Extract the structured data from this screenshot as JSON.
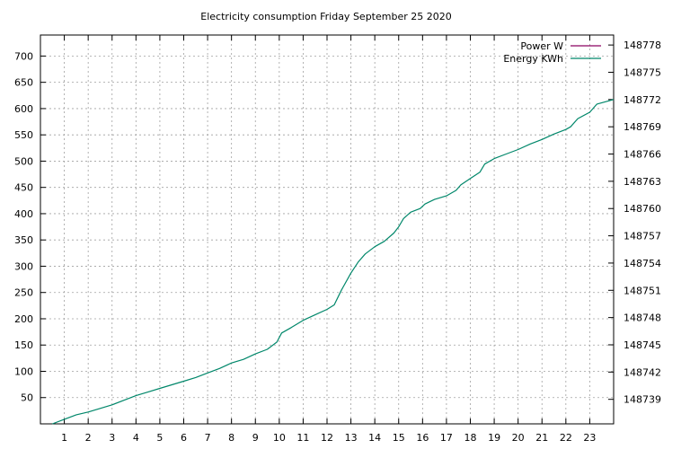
{
  "chart_data": {
    "type": "line",
    "title": "Electricity consumption Friday September 25 2020",
    "xlabel": "",
    "ylabel": "",
    "y2label": "",
    "xlim": [
      0,
      24
    ],
    "ylim": [
      0,
      740
    ],
    "y2lim": [
      148736.3,
      148779.1
    ],
    "x_ticks": [
      1,
      2,
      3,
      4,
      5,
      6,
      7,
      8,
      9,
      10,
      11,
      12,
      13,
      14,
      15,
      16,
      17,
      18,
      19,
      20,
      21,
      22,
      23
    ],
    "y_ticks": [
      50,
      100,
      150,
      200,
      250,
      300,
      350,
      400,
      450,
      500,
      550,
      600,
      650,
      700
    ],
    "y2_ticks": [
      148739,
      148742,
      148745,
      148748,
      148751,
      148754,
      148757,
      148760,
      148763,
      148766,
      148769,
      148772,
      148775,
      148778
    ],
    "grid": true,
    "legend_position": "top-right",
    "series": [
      {
        "name": "Power W",
        "axis": "y",
        "color": "#8b0060",
        "x": [],
        "y": []
      },
      {
        "name": "Energy KWh",
        "axis": "y2",
        "color": "#00876a",
        "x": [
          0.5,
          1.0,
          1.5,
          2.0,
          2.5,
          3.0,
          3.5,
          4.0,
          4.5,
          5.0,
          5.5,
          6.0,
          6.5,
          7.0,
          7.5,
          8.0,
          8.5,
          9.0,
          9.5,
          9.9,
          10.1,
          10.5,
          11.0,
          11.5,
          12.0,
          12.3,
          12.6,
          13.0,
          13.3,
          13.6,
          14.0,
          14.4,
          14.8,
          15.0,
          15.2,
          15.5,
          15.9,
          16.1,
          16.5,
          17.0,
          17.4,
          17.6,
          18.0,
          18.4,
          18.6,
          19.0,
          19.5,
          20.0,
          20.5,
          21.0,
          21.5,
          22.0,
          22.2,
          22.5,
          23.0,
          23.3,
          24.0
        ],
        "y": [
          148736.3,
          148736.8,
          148737.3,
          148737.6,
          148738.0,
          148738.4,
          148738.9,
          148739.4,
          148739.8,
          148740.2,
          148740.6,
          148741.0,
          148741.4,
          148741.9,
          148742.4,
          148743.0,
          148743.4,
          148744.0,
          148744.5,
          148745.3,
          148746.3,
          148746.9,
          148747.7,
          148748.3,
          148748.9,
          148749.4,
          148751.0,
          148752.9,
          148754.1,
          148755.0,
          148755.8,
          148756.4,
          148757.3,
          148758.0,
          148758.9,
          148759.6,
          148760.0,
          148760.5,
          148761.0,
          148761.4,
          148762.0,
          148762.6,
          148763.3,
          148764.0,
          148764.9,
          148765.5,
          148766.0,
          148766.5,
          148767.1,
          148767.6,
          148768.2,
          148768.7,
          148769.0,
          148769.9,
          148770.6,
          148771.5,
          148772.0
        ]
      }
    ]
  }
}
